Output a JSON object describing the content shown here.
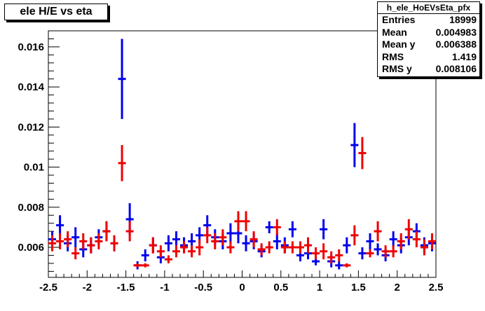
{
  "chart_data": {
    "type": "scatter",
    "title": "ele H/E vs eta",
    "xlabel": "",
    "ylabel": "",
    "xlim": [
      -2.5,
      2.5
    ],
    "ylim": [
      0.0045,
      0.0168
    ],
    "grid": false,
    "x_ticks": [
      {
        "value": -2.5,
        "label": "-2.5"
      },
      {
        "value": -2,
        "label": "-2"
      },
      {
        "value": -1.5,
        "label": "-1.5"
      },
      {
        "value": -1,
        "label": "-1"
      },
      {
        "value": -0.5,
        "label": "-0.5"
      },
      {
        "value": 0,
        "label": "0"
      },
      {
        "value": 0.5,
        "label": "0.5"
      },
      {
        "value": 1,
        "label": "1"
      },
      {
        "value": 1.5,
        "label": "1.5"
      },
      {
        "value": 2,
        "label": "2"
      },
      {
        "value": 2.5,
        "label": "2.5"
      }
    ],
    "y_ticks": [
      {
        "value": 0.006,
        "label": "0.006"
      },
      {
        "value": 0.008,
        "label": "0.008"
      },
      {
        "value": 0.01,
        "label": "0.01"
      },
      {
        "value": 0.012,
        "label": "0.012"
      },
      {
        "value": 0.014,
        "label": "0.014"
      },
      {
        "value": 0.016,
        "label": "0.016"
      }
    ],
    "bin_half_width": 0.05,
    "series": [
      {
        "color": "#0000ee",
        "x": [
          -2.45,
          -2.35,
          -2.25,
          -2.15,
          -2.05,
          -1.95,
          -1.85,
          -1.75,
          -1.65,
          -1.55,
          -1.45,
          -1.35,
          -1.25,
          -1.15,
          -1.05,
          -0.95,
          -0.85,
          -0.75,
          -0.65,
          -0.55,
          -0.45,
          -0.35,
          -0.25,
          -0.15,
          -0.05,
          0.05,
          0.15,
          0.25,
          0.35,
          0.45,
          0.55,
          0.65,
          0.75,
          0.85,
          0.95,
          1.05,
          1.15,
          1.25,
          1.35,
          1.45,
          1.55,
          1.65,
          1.75,
          1.85,
          1.95,
          2.05,
          2.15,
          2.25,
          2.35,
          2.45
        ],
        "y": [
          0.0064,
          0.0071,
          0.0062,
          0.0065,
          0.0059,
          0.0061,
          0.0065,
          0.0068,
          0.0062,
          0.0144,
          0.0074,
          0.0051,
          0.0056,
          0.0061,
          0.0055,
          0.0062,
          0.0064,
          0.0061,
          0.0063,
          0.0066,
          0.0071,
          0.0065,
          0.0063,
          0.0067,
          0.0067,
          0.0062,
          0.0063,
          0.0058,
          0.007,
          0.0063,
          0.0061,
          0.0069,
          0.0056,
          0.0057,
          0.0053,
          0.0069,
          0.0053,
          0.0051,
          0.0061,
          0.0111,
          0.0057,
          0.0063,
          0.0059,
          0.0056,
          0.0064,
          0.0061,
          0.0065,
          0.0068,
          0.0061,
          0.0062
        ],
        "err": [
          0.0004,
          0.0005,
          0.0004,
          0.0005,
          0.0004,
          0.0004,
          0.0004,
          0.0005,
          0.0004,
          0.002,
          0.0008,
          0.0002,
          0.0003,
          0.0004,
          0.0003,
          0.0004,
          0.0004,
          0.0004,
          0.0004,
          0.0004,
          0.0005,
          0.0004,
          0.0004,
          0.0005,
          0.0005,
          0.0004,
          0.0004,
          0.0003,
          0.0003,
          0.0004,
          0.0004,
          0.0004,
          0.0003,
          0.0003,
          0.0002,
          0.0005,
          0.0003,
          0.0002,
          0.0004,
          0.0011,
          0.0003,
          0.0004,
          0.0003,
          0.0003,
          0.0004,
          0.0004,
          0.0004,
          0.0004,
          0.0004,
          0.0004
        ]
      },
      {
        "color": "#ee0000",
        "x": [
          -2.45,
          -2.35,
          -2.25,
          -2.15,
          -2.05,
          -1.95,
          -1.85,
          -1.75,
          -1.65,
          -1.55,
          -1.45,
          -1.35,
          -1.25,
          -1.15,
          -1.05,
          -0.95,
          -0.85,
          -0.75,
          -0.65,
          -0.55,
          -0.45,
          -0.35,
          -0.25,
          -0.15,
          -0.05,
          0.05,
          0.15,
          0.25,
          0.35,
          0.45,
          0.55,
          0.65,
          0.75,
          0.85,
          0.95,
          1.05,
          1.15,
          1.25,
          1.35,
          1.45,
          1.55,
          1.65,
          1.75,
          1.85,
          1.95,
          2.05,
          2.15,
          2.25,
          2.35,
          2.45
        ],
        "y": [
          0.0062,
          0.0063,
          0.0064,
          0.0057,
          0.0063,
          0.0061,
          0.0063,
          0.0068,
          0.0062,
          0.0102,
          0.0068,
          0.0051,
          0.0051,
          0.0061,
          0.0058,
          0.0054,
          0.0058,
          0.006,
          0.0058,
          0.006,
          0.0066,
          0.0063,
          0.0065,
          0.006,
          0.0073,
          0.0073,
          0.0064,
          0.0059,
          0.006,
          0.007,
          0.006,
          0.006,
          0.006,
          0.0061,
          0.0057,
          0.0058,
          0.0055,
          0.0056,
          0.0051,
          0.0066,
          0.0107,
          0.0057,
          0.0068,
          0.0058,
          0.0058,
          0.0063,
          0.0069,
          0.0064,
          0.006,
          0.0063
        ],
        "err": [
          0.0004,
          0.0004,
          0.0004,
          0.0003,
          0.0004,
          0.0004,
          0.0004,
          0.0005,
          0.0004,
          0.0009,
          0.0005,
          0.0001,
          0.0001,
          0.0004,
          0.0003,
          0.0002,
          0.0003,
          0.0003,
          0.0003,
          0.0004,
          0.0004,
          0.0004,
          0.0004,
          0.0003,
          0.0005,
          0.0005,
          0.0004,
          0.0003,
          0.0003,
          0.0004,
          0.0003,
          0.0003,
          0.0003,
          0.0004,
          0.0003,
          0.0004,
          0.0003,
          0.0003,
          0.0001,
          0.0005,
          0.0008,
          0.0002,
          0.0005,
          0.0003,
          0.0003,
          0.0004,
          0.0005,
          0.0004,
          0.0004,
          0.0004
        ]
      }
    ]
  },
  "stats": {
    "name": "h_ele_HoEVsEta_pfx",
    "rows": [
      {
        "label": "Entries",
        "value": "18999"
      },
      {
        "label": "Mean",
        "value": "0.004983"
      },
      {
        "label": "Mean y",
        "value": "0.006388"
      },
      {
        "label": "RMS",
        "value": "1.419"
      },
      {
        "label": "RMS y",
        "value": "0.008106"
      }
    ]
  }
}
